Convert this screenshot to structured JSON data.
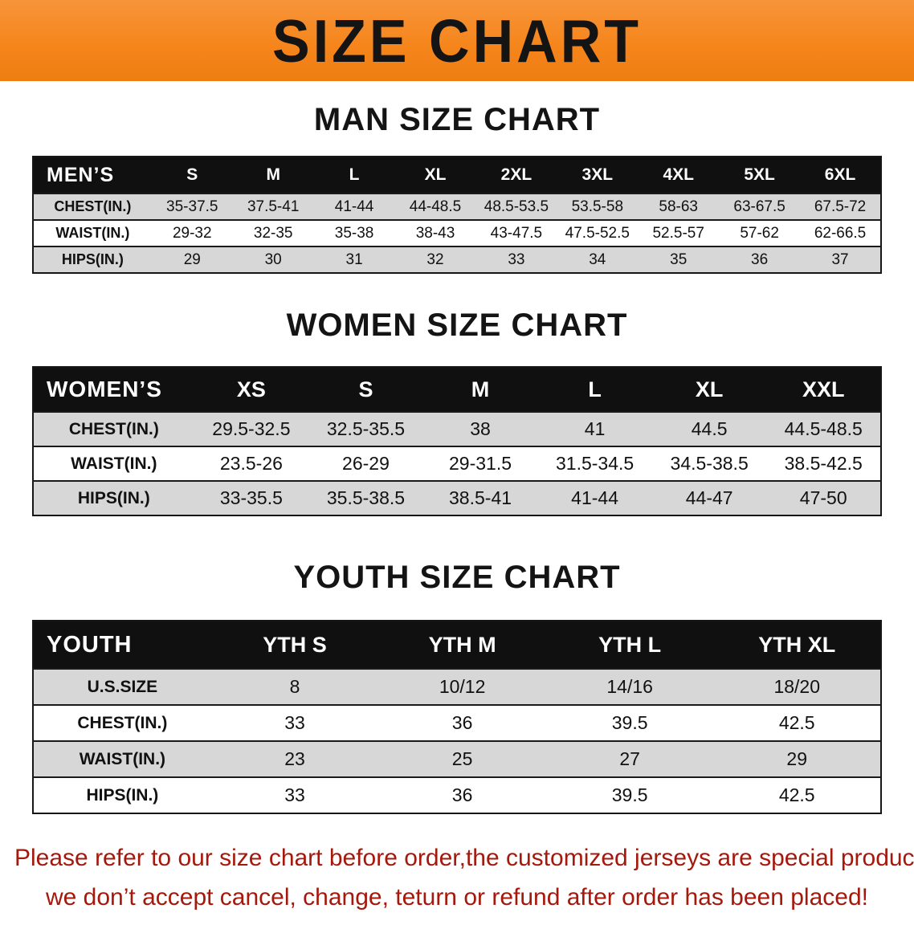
{
  "banner": {
    "title": "SIZE CHART",
    "bg_color": "#f6861c"
  },
  "sections": [
    {
      "id": "men",
      "heading": "MAN SIZE CHART",
      "table": {
        "header": [
          "MEN’S",
          "S",
          "M",
          "L",
          "XL",
          "2XL",
          "3XL",
          "4XL",
          "5XL",
          "6XL"
        ],
        "rows": [
          {
            "label": "CHEST(IN.)",
            "values": [
              "35-37.5",
              "37.5-41",
              "41-44",
              "44-48.5",
              "48.5-53.5",
              "53.5-58",
              "58-63",
              "63-67.5",
              "67.5-72"
            ]
          },
          {
            "label": "WAIST(IN.)",
            "values": [
              "29-32",
              "32-35",
              "35-38",
              "38-43",
              "43-47.5",
              "47.5-52.5",
              "52.5-57",
              "57-62",
              "62-66.5"
            ]
          },
          {
            "label": "HIPS(IN.)",
            "values": [
              "29",
              "30",
              "31",
              "32",
              "33",
              "34",
              "35",
              "36",
              "37"
            ]
          }
        ]
      }
    },
    {
      "id": "women",
      "heading": "WOMEN SIZE CHART",
      "table": {
        "header": [
          "WOMEN’S",
          "XS",
          "S",
          "M",
          "L",
          "XL",
          "XXL"
        ],
        "rows": [
          {
            "label": "CHEST(IN.)",
            "values": [
              "29.5-32.5",
              "32.5-35.5",
              "38",
              "41",
              "44.5",
              "44.5-48.5"
            ]
          },
          {
            "label": "WAIST(IN.)",
            "values": [
              "23.5-26",
              "26-29",
              "29-31.5",
              "31.5-34.5",
              "34.5-38.5",
              "38.5-42.5"
            ]
          },
          {
            "label": "HIPS(IN.)",
            "values": [
              "33-35.5",
              "35.5-38.5",
              "38.5-41",
              "41-44",
              "44-47",
              "47-50"
            ]
          }
        ]
      }
    },
    {
      "id": "youth",
      "heading": "YOUTH SIZE CHART",
      "table": {
        "header": [
          "YOUTH",
          "YTH S",
          "YTH M",
          "YTH L",
          "YTH XL"
        ],
        "rows": [
          {
            "label": "U.S.SIZE",
            "values": [
              "8",
              "10/12",
              "14/16",
              "18/20"
            ]
          },
          {
            "label": "CHEST(IN.)",
            "values": [
              "33",
              "36",
              "39.5",
              "42.5"
            ]
          },
          {
            "label": "WAIST(IN.)",
            "values": [
              "23",
              "25",
              "27",
              "29"
            ]
          },
          {
            "label": "HIPS(IN.)",
            "values": [
              "33",
              "36",
              "39.5",
              "42.5"
            ]
          }
        ]
      }
    }
  ],
  "disclaimer": {
    "color": "#a5180c",
    "lines": [
      "Please refer to our size chart before order,the customized jerseys are special products,",
      "we don’t accept cancel, change, teturn or refund after order has been placed!"
    ]
  }
}
